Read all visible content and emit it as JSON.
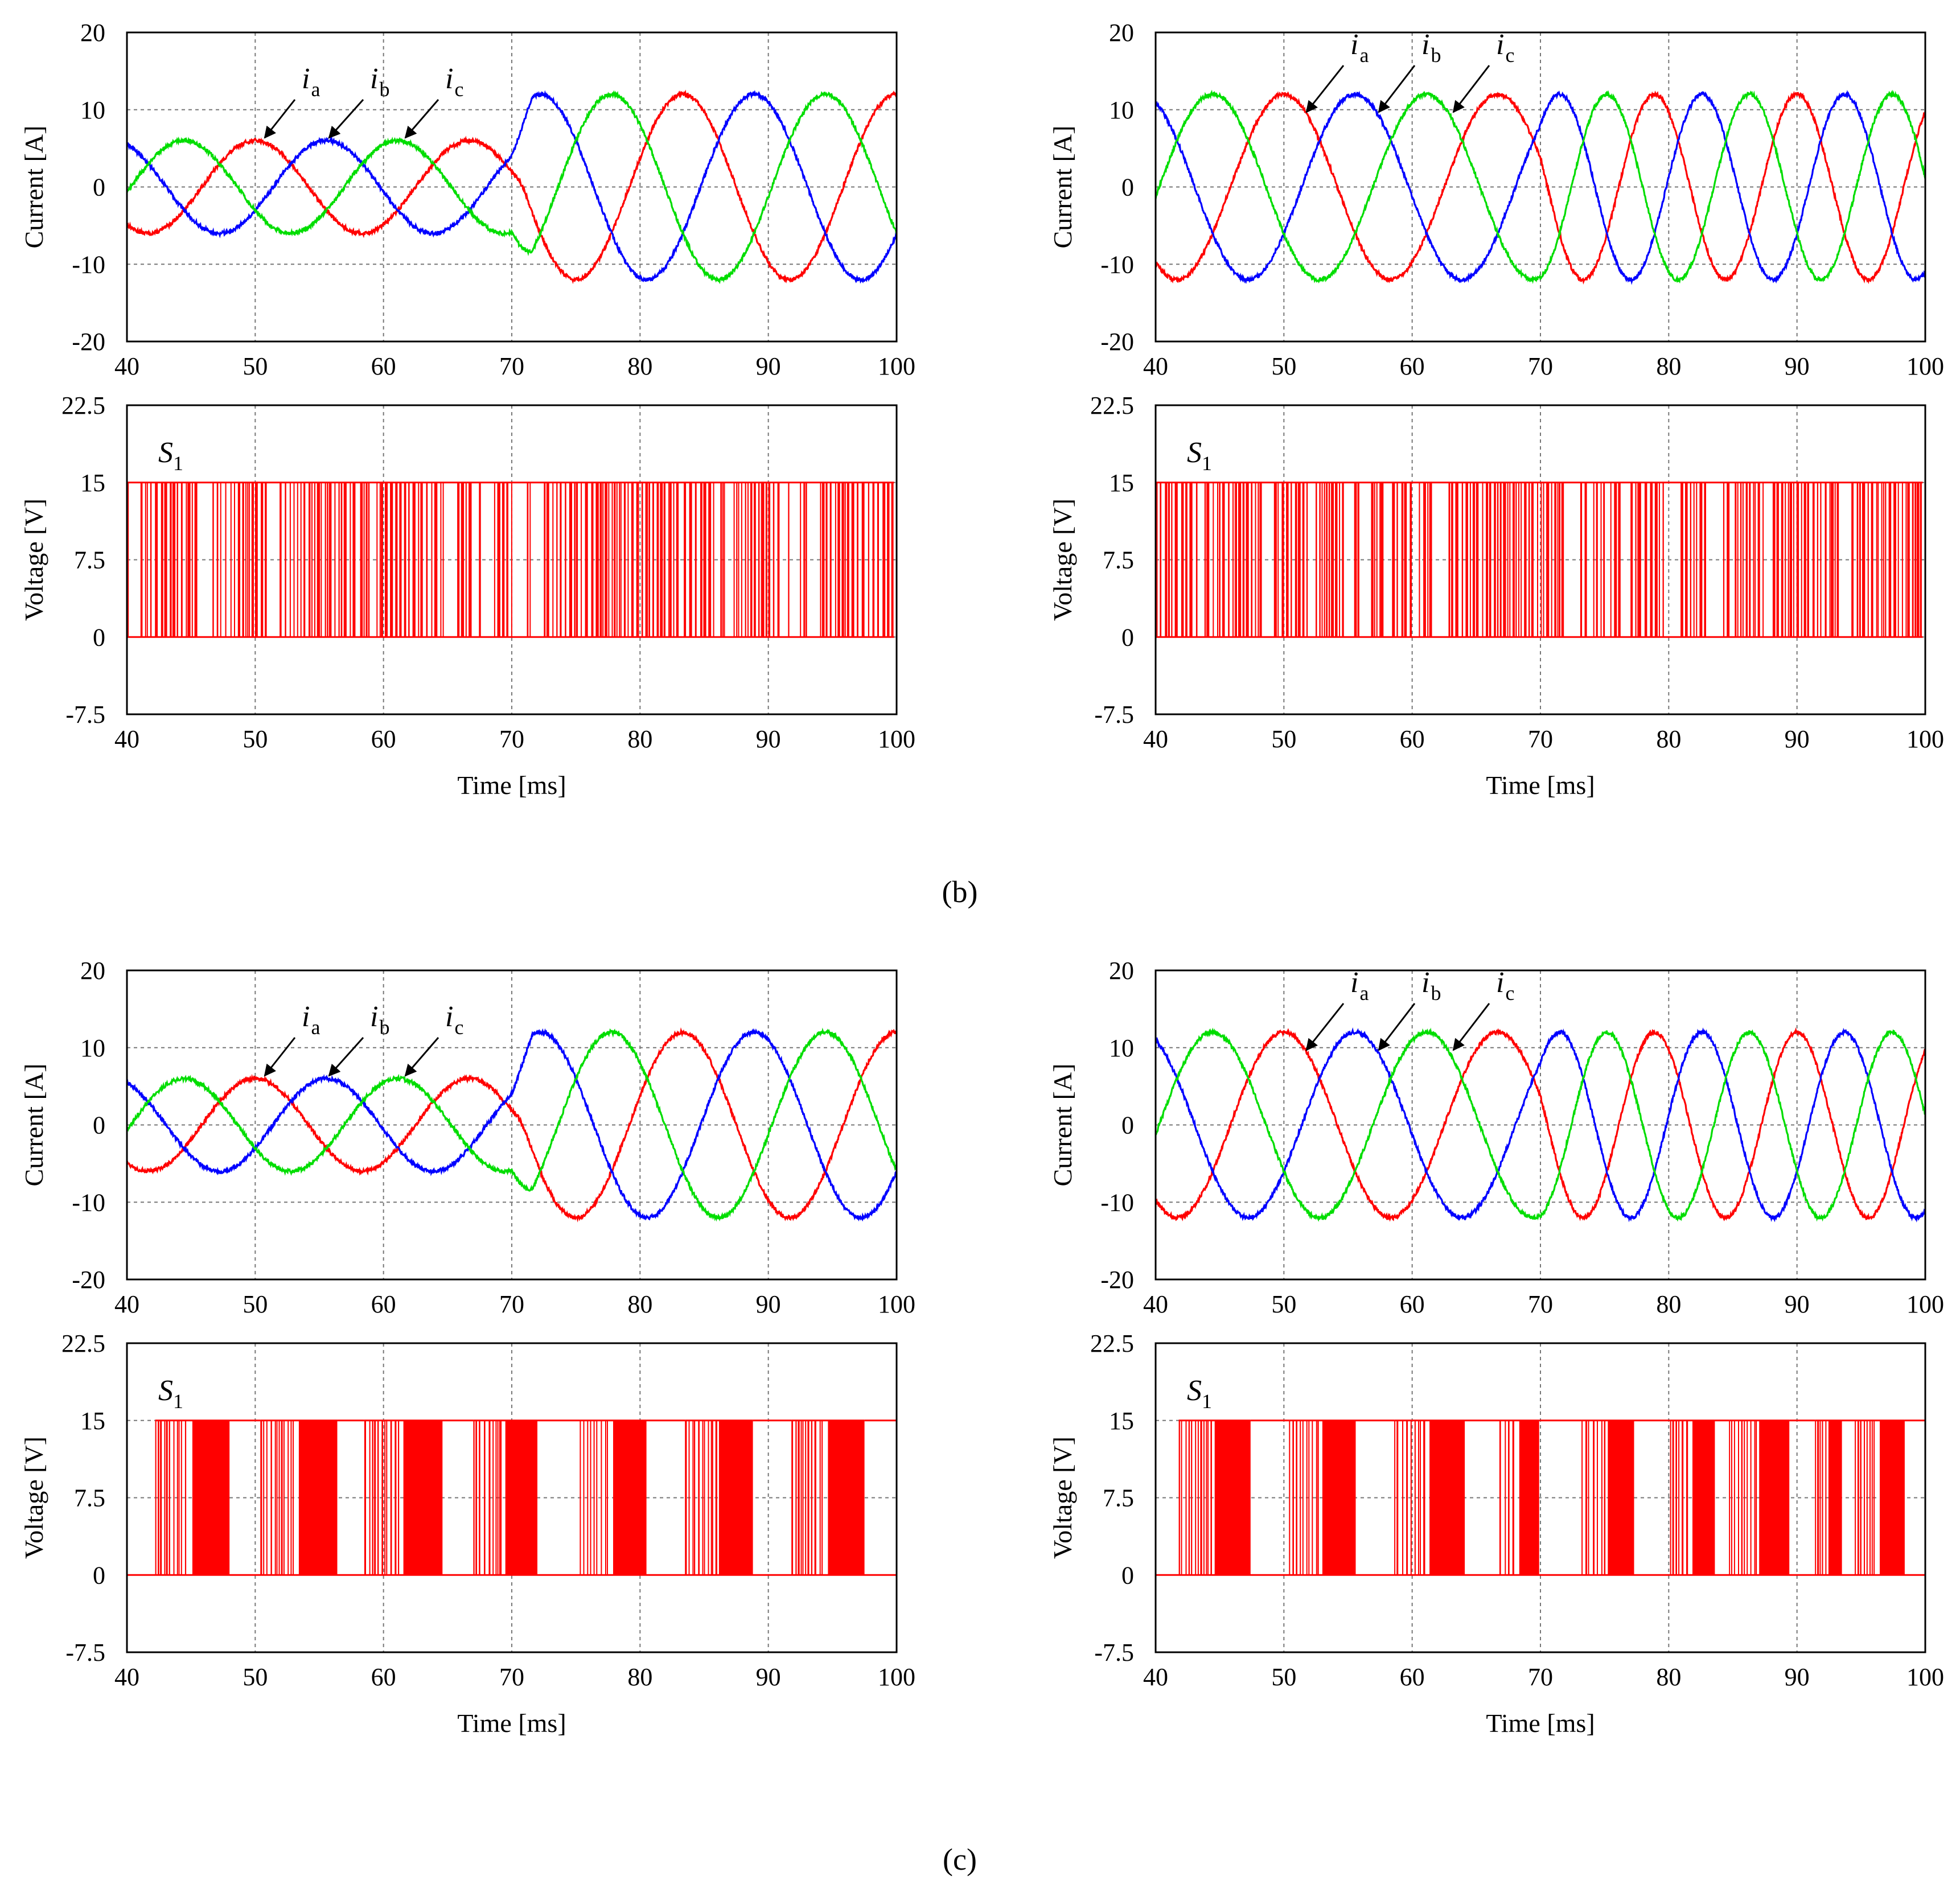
{
  "colors": {
    "ia": "#ff0000",
    "ib": "#0000ff",
    "ic": "#00dd00",
    "switch": "#ff0000",
    "grid": "#777777"
  },
  "captions": [
    "(b)",
    "(c)"
  ],
  "chart_data": [
    {
      "id": "b-left-current",
      "type": "line",
      "group": "b",
      "column": "left",
      "xlim": [
        40,
        100
      ],
      "ylim": [
        -20,
        20
      ],
      "xticks": [
        "40",
        "50",
        "60",
        "70",
        "80",
        "90",
        "100"
      ],
      "yticks": [
        "20",
        "10",
        "0",
        "-10",
        "-20"
      ],
      "ylabel": "Current [A]",
      "xlabel": "",
      "series": [
        {
          "name": "a",
          "label_symbol": "i",
          "label_sub": "a",
          "amplitude_before": 6,
          "amplitude_after": 12,
          "freq_before_hz": 60,
          "freq_after_hz": 60,
          "step_ms": 70,
          "phase_deg": 0
        },
        {
          "name": "b",
          "label_symbol": "i",
          "label_sub": "b",
          "amplitude_before": 6,
          "amplitude_after": 12,
          "freq_before_hz": 60,
          "freq_after_hz": 60,
          "step_ms": 70,
          "phase_deg": -120
        },
        {
          "name": "c",
          "label_symbol": "i",
          "label_sub": "c",
          "amplitude_before": 6,
          "amplitude_after": 12,
          "freq_before_hz": 60,
          "freq_after_hz": 60,
          "step_ms": 70,
          "phase_deg": 120
        }
      ]
    },
    {
      "id": "b-right-current",
      "type": "line",
      "group": "b",
      "column": "right",
      "xlim": [
        40,
        100
      ],
      "ylim": [
        -20,
        20
      ],
      "xticks": [
        "40",
        "50",
        "60",
        "70",
        "80",
        "90",
        "100"
      ],
      "yticks": [
        "20",
        "10",
        "0",
        "-10",
        "-20"
      ],
      "ylabel": "Current [A]",
      "xlabel": "",
      "series": [
        {
          "name": "a",
          "label_symbol": "i",
          "label_sub": "a",
          "amplitude_before": 12,
          "amplitude_after": 12,
          "freq_before_hz": 60,
          "freq_after_hz": 90,
          "step_ms": 70,
          "phase_deg": 0
        },
        {
          "name": "b",
          "label_symbol": "i",
          "label_sub": "b",
          "amplitude_before": 12,
          "amplitude_after": 12,
          "freq_before_hz": 60,
          "freq_after_hz": 90,
          "step_ms": 70,
          "phase_deg": -120
        },
        {
          "name": "c",
          "label_symbol": "i",
          "label_sub": "c",
          "amplitude_before": 12,
          "amplitude_after": 12,
          "freq_before_hz": 60,
          "freq_after_hz": 90,
          "step_ms": 70,
          "phase_deg": 120
        }
      ]
    },
    {
      "id": "b-left-voltage",
      "type": "line",
      "group": "b",
      "column": "left",
      "signal": "pwm-dense",
      "xlim": [
        40,
        100
      ],
      "ylim": [
        -7.5,
        22.5
      ],
      "xticks": [
        "40",
        "50",
        "60",
        "70",
        "80",
        "90",
        "100"
      ],
      "yticks": [
        "22.5",
        "15",
        "7.5",
        "0",
        "-7.5"
      ],
      "ylabel": "Voltage [V]",
      "xlabel": "Time [ms]",
      "switch_label": "S",
      "switch_sub": "1",
      "levels": [
        0,
        15
      ]
    },
    {
      "id": "b-right-voltage",
      "type": "line",
      "group": "b",
      "column": "right",
      "signal": "pwm-dense",
      "xlim": [
        40,
        100
      ],
      "ylim": [
        -7.5,
        22.5
      ],
      "xticks": [
        "40",
        "50",
        "60",
        "70",
        "80",
        "90",
        "100"
      ],
      "yticks": [
        "22.5",
        "15",
        "7.5",
        "0",
        "-7.5"
      ],
      "ylabel": "Voltage [V]",
      "xlabel": "Time [ms]",
      "switch_label": "S",
      "switch_sub": "1",
      "levels": [
        0,
        15
      ]
    },
    {
      "id": "c-left-current",
      "type": "line",
      "group": "c",
      "column": "left",
      "xlim": [
        40,
        100
      ],
      "ylim": [
        -20,
        20
      ],
      "xticks": [
        "40",
        "50",
        "60",
        "70",
        "80",
        "90",
        "100"
      ],
      "yticks": [
        "20",
        "10",
        "0",
        "-10",
        "-20"
      ],
      "ylabel": "Current [A]",
      "xlabel": "",
      "series": [
        {
          "name": "a",
          "label_symbol": "i",
          "label_sub": "a",
          "amplitude_before": 6,
          "amplitude_after": 12,
          "freq_before_hz": 60,
          "freq_after_hz": 60,
          "step_ms": 70,
          "phase_deg": 0
        },
        {
          "name": "b",
          "label_symbol": "i",
          "label_sub": "b",
          "amplitude_before": 6,
          "amplitude_after": 12,
          "freq_before_hz": 60,
          "freq_after_hz": 60,
          "step_ms": 70,
          "phase_deg": -120
        },
        {
          "name": "c",
          "label_symbol": "i",
          "label_sub": "c",
          "amplitude_before": 6,
          "amplitude_after": 12,
          "freq_before_hz": 60,
          "freq_after_hz": 60,
          "step_ms": 70,
          "phase_deg": 120
        }
      ]
    },
    {
      "id": "c-right-current",
      "type": "line",
      "group": "c",
      "column": "right",
      "xlim": [
        40,
        100
      ],
      "ylim": [
        -20,
        20
      ],
      "xticks": [
        "40",
        "50",
        "60",
        "70",
        "80",
        "90",
        "100"
      ],
      "yticks": [
        "20",
        "10",
        "0",
        "-10",
        "-20"
      ],
      "ylabel": "Current [A]",
      "xlabel": "",
      "series": [
        {
          "name": "a",
          "label_symbol": "i",
          "label_sub": "a",
          "amplitude_before": 12,
          "amplitude_after": 12,
          "freq_before_hz": 60,
          "freq_after_hz": 90,
          "step_ms": 70,
          "phase_deg": 0
        },
        {
          "name": "b",
          "label_symbol": "i",
          "label_sub": "b",
          "amplitude_before": 12,
          "amplitude_after": 12,
          "freq_before_hz": 60,
          "freq_after_hz": 90,
          "step_ms": 70,
          "phase_deg": -120
        },
        {
          "name": "c",
          "label_symbol": "i",
          "label_sub": "c",
          "amplitude_before": 12,
          "amplitude_after": 12,
          "freq_before_hz": 60,
          "freq_after_hz": 90,
          "step_ms": 70,
          "phase_deg": 120
        }
      ]
    },
    {
      "id": "c-left-voltage",
      "type": "line",
      "group": "c",
      "column": "left",
      "signal": "pwm-bursts",
      "xlim": [
        40,
        100
      ],
      "ylim": [
        -7.5,
        22.5
      ],
      "xticks": [
        "40",
        "50",
        "60",
        "70",
        "80",
        "90",
        "100"
      ],
      "yticks": [
        "22.5",
        "15",
        "7.5",
        "0",
        "-7.5"
      ],
      "ylabel": "Voltage [V]",
      "xlabel": "Time [ms]",
      "switch_label": "S",
      "switch_sub": "1",
      "levels": [
        0,
        15
      ],
      "bursts_ms": [
        [
          42.2,
          48.0
        ],
        [
          50.4,
          56.4
        ],
        [
          58.5,
          64.6
        ],
        [
          67.0,
          72.0
        ],
        [
          75.3,
          80.5
        ],
        [
          83.5,
          88.8
        ],
        [
          91.8,
          97.5
        ]
      ]
    },
    {
      "id": "c-right-voltage",
      "type": "line",
      "group": "c",
      "column": "right",
      "signal": "pwm-bursts",
      "xlim": [
        40,
        100
      ],
      "ylim": [
        -7.5,
        22.5
      ],
      "xticks": [
        "40",
        "50",
        "60",
        "70",
        "80",
        "90",
        "100"
      ],
      "yticks": [
        "22.5",
        "15",
        "7.5",
        "0",
        "-7.5"
      ],
      "ylabel": "Voltage [V]",
      "xlabel": "Time [ms]",
      "switch_label": "S",
      "switch_sub": "1",
      "levels": [
        0,
        15
      ],
      "bursts_ms": [
        [
          41.8,
          47.4
        ],
        [
          50.4,
          55.6
        ],
        [
          58.6,
          64.1
        ],
        [
          66.8,
          69.9
        ],
        [
          73.2,
          77.3
        ],
        [
          80.1,
          83.6
        ],
        [
          84.7,
          89.4
        ],
        [
          91.4,
          93.5
        ],
        [
          94.5,
          98.4
        ]
      ]
    }
  ]
}
